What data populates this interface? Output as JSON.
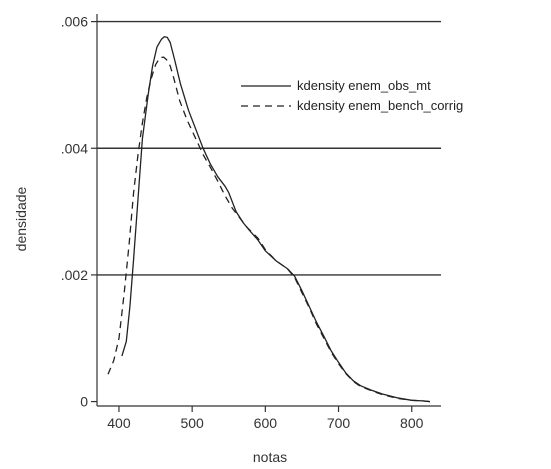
{
  "chart_data": {
    "type": "line",
    "title": "",
    "xlabel": "notas",
    "ylabel": "densidade",
    "xlim": [
      370,
      840
    ],
    "ylim": [
      -7e-05,
      0.00612
    ],
    "grid": true,
    "legend_position": "top-right",
    "x_ticks": [
      {
        "value": 400,
        "label": "400"
      },
      {
        "value": 500,
        "label": "500"
      },
      {
        "value": 600,
        "label": "600"
      },
      {
        "value": 700,
        "label": "700"
      },
      {
        "value": 800,
        "label": "800"
      }
    ],
    "y_ticks": [
      {
        "value": 0,
        "label": "0"
      },
      {
        "value": 0.002,
        "label": ".002"
      },
      {
        "value": 0.004,
        "label": ".004"
      },
      {
        "value": 0.006,
        "label": ".006"
      }
    ],
    "series": [
      {
        "name": "kdensity enem_obs_mt",
        "style": "solid",
        "color": "#222222",
        "x": [
          404,
          410,
          415,
          420,
          426,
          432,
          440,
          446,
          452,
          458,
          462,
          466,
          470,
          476,
          484,
          495,
          505,
          515,
          525,
          535,
          545,
          550,
          555,
          560,
          570,
          580,
          590,
          600,
          615,
          630,
          640,
          650,
          660,
          670,
          680,
          690,
          700,
          710,
          720,
          730,
          745,
          760,
          780,
          800,
          815,
          825
        ],
        "y": [
          0.00072,
          0.00095,
          0.0015,
          0.00225,
          0.0032,
          0.00415,
          0.00485,
          0.0053,
          0.0056,
          0.00572,
          0.00576,
          0.00575,
          0.00567,
          0.0054,
          0.00502,
          0.0046,
          0.0043,
          0.004,
          0.00375,
          0.00355,
          0.0034,
          0.0033,
          0.00315,
          0.003,
          0.00282,
          0.00268,
          0.00255,
          0.00238,
          0.00222,
          0.0021,
          0.00198,
          0.00175,
          0.0015,
          0.00125,
          0.00103,
          0.0008,
          0.00062,
          0.00045,
          0.00033,
          0.00025,
          0.00018,
          0.00012,
          6e-05,
          2e-05,
          1e-05,
          0.0
        ]
      },
      {
        "name": "kdensity enem_bench_corrig",
        "style": "dashed",
        "color": "#222222",
        "x": [
          385,
          393,
          400,
          407,
          414,
          420,
          426,
          432,
          438,
          444,
          450,
          456,
          461,
          465,
          470,
          475,
          483,
          493,
          505,
          515,
          525,
          535,
          545,
          555,
          565,
          575,
          590,
          600,
          615,
          630,
          640,
          650,
          660,
          670,
          680,
          690,
          700,
          710,
          720,
          730,
          745,
          760,
          780,
          800,
          815,
          825
        ],
        "y": [
          0.00043,
          0.00065,
          0.001,
          0.0017,
          0.0025,
          0.0033,
          0.0039,
          0.0044,
          0.0048,
          0.0051,
          0.00532,
          0.00543,
          0.00544,
          0.0054,
          0.0053,
          0.0051,
          0.00475,
          0.00445,
          0.00415,
          0.0039,
          0.0037,
          0.00348,
          0.00325,
          0.00305,
          0.0029,
          0.00275,
          0.00258,
          0.0024,
          0.00222,
          0.0021,
          0.00196,
          0.00172,
          0.00148,
          0.00122,
          0.001,
          0.00078,
          0.0006,
          0.00044,
          0.00032,
          0.00024,
          0.00017,
          0.00011,
          5e-05,
          2e-05,
          1e-05,
          0.0
        ]
      }
    ]
  }
}
